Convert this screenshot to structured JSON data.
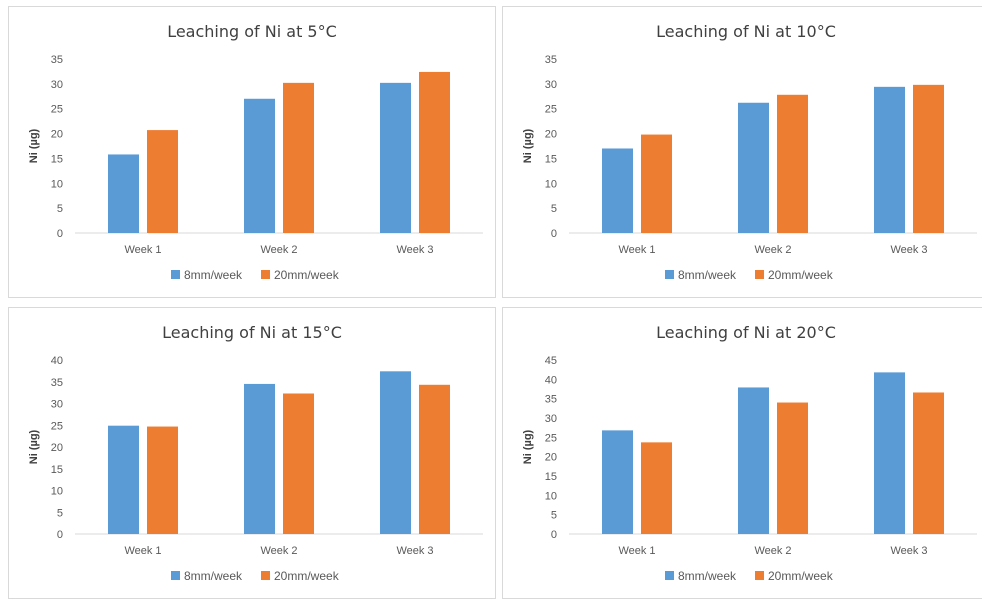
{
  "colors": {
    "series_1": "#5b9bd5",
    "series_2": "#ed7d31",
    "axis": "#d9d9d9",
    "text": "#595959"
  },
  "chart_data": [
    {
      "type": "bar",
      "title": "Leaching of Ni at 5°C",
      "ylabel": "Ni (µg)",
      "categories": [
        "Week 1",
        "Week 2",
        "Week 3"
      ],
      "yticks": [
        "0",
        "5",
        "10",
        "15",
        "20",
        "25",
        "30",
        "35"
      ],
      "ylim": [
        0,
        35
      ],
      "legend_position": "bottom",
      "grid": false,
      "series": [
        {
          "name": "8mm/week",
          "values": [
            15.8,
            27.0,
            30.2
          ]
        },
        {
          "name": "20mm/week",
          "values": [
            20.7,
            30.2,
            32.4
          ]
        }
      ]
    },
    {
      "type": "bar",
      "title": "Leaching of Ni at 10°C",
      "ylabel": "Ni (µg)",
      "categories": [
        "Week 1",
        "Week 2",
        "Week 3"
      ],
      "yticks": [
        "0",
        "5",
        "10",
        "15",
        "20",
        "25",
        "30",
        "35"
      ],
      "ylim": [
        0,
        35
      ],
      "legend_position": "bottom",
      "grid": false,
      "series": [
        {
          "name": "8mm/week",
          "values": [
            17.0,
            26.2,
            29.4
          ]
        },
        {
          "name": "20mm/week",
          "values": [
            19.8,
            27.8,
            29.8
          ]
        }
      ]
    },
    {
      "type": "bar",
      "title": "Leaching of Ni at 15°C",
      "ylabel": "Ni (µg)",
      "categories": [
        "Week 1",
        "Week 2",
        "Week 3"
      ],
      "yticks": [
        "0",
        "5",
        "10",
        "15",
        "20",
        "25",
        "30",
        "35",
        "40"
      ],
      "ylim": [
        0,
        40
      ],
      "legend_position": "bottom",
      "grid": false,
      "series": [
        {
          "name": "8mm/week",
          "values": [
            24.9,
            34.5,
            37.4
          ]
        },
        {
          "name": "20mm/week",
          "values": [
            24.7,
            32.3,
            34.3
          ]
        }
      ]
    },
    {
      "type": "bar",
      "title": "Leaching of Ni at 20°C",
      "ylabel": "Ni (µg)",
      "categories": [
        "Week 1",
        "Week 2",
        "Week 3"
      ],
      "yticks": [
        "0",
        "5",
        "10",
        "15",
        "20",
        "25",
        "30",
        "35",
        "40",
        "45"
      ],
      "ylim": [
        0,
        45
      ],
      "legend_position": "bottom",
      "grid": false,
      "series": [
        {
          "name": "8mm/week",
          "values": [
            26.8,
            37.9,
            41.8
          ]
        },
        {
          "name": "20mm/week",
          "values": [
            23.7,
            34.0,
            36.6
          ]
        }
      ]
    }
  ]
}
